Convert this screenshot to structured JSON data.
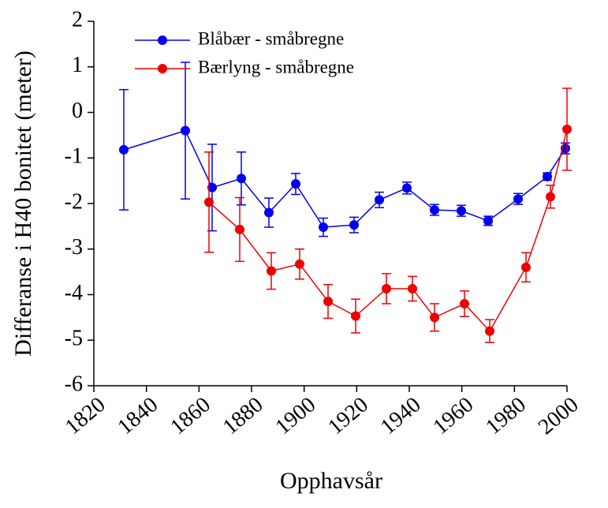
{
  "chart_data": {
    "type": "line",
    "x_label": "Opphavsår",
    "y_label": "Differanse i H40 bonitet (meter)",
    "xlim": [
      1820,
      2000
    ],
    "xticks": [
      1820,
      1840,
      1860,
      1880,
      1900,
      1920,
      1940,
      1960,
      1980,
      2000
    ],
    "ylim": [
      -6,
      2
    ],
    "yticks": [
      -6,
      -5,
      -4,
      -3,
      -2,
      -1,
      0,
      1,
      2
    ],
    "legend": "upper left",
    "series": [
      {
        "name": "Blåbær - småbregne",
        "color": "#0000ee",
        "x": [
          1831.4,
          1854.8,
          1865,
          1876.1,
          1886.6,
          1896.8,
          1907.3,
          1919,
          1928.6,
          1939.1,
          1949.6,
          1959.8,
          1970,
          1981.4,
          1992.5,
          1999.4
        ],
        "values": [
          -0.82,
          -0.4,
          -1.65,
          -1.45,
          -2.2,
          -1.57,
          -2.52,
          -2.47,
          -1.92,
          -1.66,
          -2.14,
          -2.16,
          -2.38,
          -1.9,
          -1.41,
          -0.79
        ],
        "errors": [
          1.32,
          1.5,
          0.95,
          0.58,
          0.32,
          0.23,
          0.2,
          0.17,
          0.17,
          0.13,
          0.12,
          0.12,
          0.1,
          0.12,
          0.08,
          0.12
        ]
      },
      {
        "name": "Bærlyng - småbregne",
        "color": "#ee0000",
        "x": [
          1863.8,
          1875.5,
          1887.5,
          1898.3,
          1909.1,
          1919.6,
          1931.3,
          1941.2,
          1949.6,
          1961,
          1970.6,
          1984.4,
          1993.7,
          2000
        ],
        "values": [
          -1.97,
          -2.57,
          -3.48,
          -3.33,
          -4.15,
          -4.47,
          -3.87,
          -3.87,
          -4.5,
          -4.2,
          -4.8,
          -3.4,
          -1.85,
          -0.37
        ],
        "errors": [
          1.1,
          0.7,
          0.4,
          0.33,
          0.37,
          0.37,
          0.33,
          0.27,
          0.3,
          0.28,
          0.25,
          0.32,
          0.25,
          0.9
        ]
      }
    ]
  }
}
